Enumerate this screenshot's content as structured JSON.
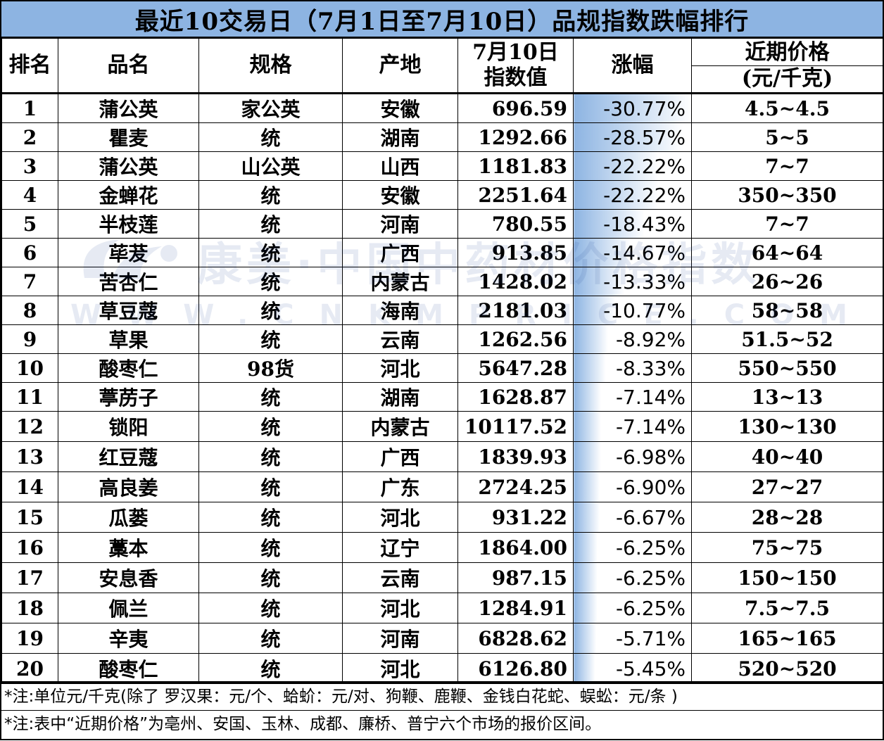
{
  "title": "最近10交易日（7月1日至7月10日）品规指数跌幅排行",
  "headers": {
    "rank": "排名",
    "name": "品名",
    "spec": "规格",
    "origin": "产地",
    "index_line1": "7月10日",
    "index_line2": "指数值",
    "change": "涨幅",
    "price_line1": "近期价格",
    "price_line2": "(元/千克)"
  },
  "rows": [
    {
      "rank": "1",
      "name": "蒲公英",
      "spec": "家公英",
      "origin": "安徽",
      "index": "696.59",
      "change": "-30.77%",
      "price": "4.5~4.5",
      "change_pct": 30.77
    },
    {
      "rank": "2",
      "name": "瞿麦",
      "spec": "统",
      "origin": "湖南",
      "index": "1292.66",
      "change": "-28.57%",
      "price": "5~5",
      "change_pct": 28.57
    },
    {
      "rank": "3",
      "name": "蒲公英",
      "spec": "山公英",
      "origin": "山西",
      "index": "1181.83",
      "change": "-22.22%",
      "price": "7~7",
      "change_pct": 22.22
    },
    {
      "rank": "4",
      "name": "金蝉花",
      "spec": "统",
      "origin": "安徽",
      "index": "2251.64",
      "change": "-22.22%",
      "price": "350~350",
      "change_pct": 22.22
    },
    {
      "rank": "5",
      "name": "半枝莲",
      "spec": "统",
      "origin": "河南",
      "index": "780.55",
      "change": "-18.43%",
      "price": "7~7",
      "change_pct": 18.43
    },
    {
      "rank": "6",
      "name": "荜茇",
      "spec": "统",
      "origin": "广西",
      "index": "913.85",
      "change": "-14.67%",
      "price": "64~64",
      "change_pct": 14.67
    },
    {
      "rank": "7",
      "name": "苦杏仁",
      "spec": "统",
      "origin": "内蒙古",
      "index": "1428.02",
      "change": "-13.33%",
      "price": "26~26",
      "change_pct": 13.33
    },
    {
      "rank": "8",
      "name": "草豆蔻",
      "spec": "统",
      "origin": "海南",
      "index": "2181.03",
      "change": "-10.77%",
      "price": "58~58",
      "change_pct": 10.77
    },
    {
      "rank": "9",
      "name": "草果",
      "spec": "统",
      "origin": "云南",
      "index": "1262.56",
      "change": "-8.92%",
      "price": "51.5~52",
      "change_pct": 8.92
    },
    {
      "rank": "10",
      "name": "酸枣仁",
      "spec": "98货",
      "origin": "河北",
      "index": "5647.28",
      "change": "-8.33%",
      "price": "550~550",
      "change_pct": 8.33
    },
    {
      "rank": "11",
      "name": "葶苈子",
      "spec": "统",
      "origin": "湖南",
      "index": "1628.87",
      "change": "-7.14%",
      "price": "13~13",
      "change_pct": 7.14
    },
    {
      "rank": "12",
      "name": "锁阳",
      "spec": "统",
      "origin": "内蒙古",
      "index": "10117.52",
      "change": "-7.14%",
      "price": "130~130",
      "change_pct": 7.14
    },
    {
      "rank": "13",
      "name": "红豆蔻",
      "spec": "统",
      "origin": "广西",
      "index": "1839.93",
      "change": "-6.98%",
      "price": "40~40",
      "change_pct": 6.98
    },
    {
      "rank": "14",
      "name": "高良姜",
      "spec": "统",
      "origin": "广东",
      "index": "2724.25",
      "change": "-6.90%",
      "price": "27~27",
      "change_pct": 6.9
    },
    {
      "rank": "15",
      "name": "瓜蒌",
      "spec": "统",
      "origin": "河北",
      "index": "931.22",
      "change": "-6.67%",
      "price": "28~28",
      "change_pct": 6.67
    },
    {
      "rank": "16",
      "name": "藁本",
      "spec": "统",
      "origin": "辽宁",
      "index": "1864.00",
      "change": "-6.25%",
      "price": "75~75",
      "change_pct": 6.25
    },
    {
      "rank": "17",
      "name": "安息香",
      "spec": "统",
      "origin": "云南",
      "index": "987.15",
      "change": "-6.25%",
      "price": "150~150",
      "change_pct": 6.25
    },
    {
      "rank": "18",
      "name": "佩兰",
      "spec": "统",
      "origin": "河北",
      "index": "1284.91",
      "change": "-6.25%",
      "price": "7.5~7.5",
      "change_pct": 6.25
    },
    {
      "rank": "19",
      "name": "辛夷",
      "spec": "统",
      "origin": "河南",
      "index": "6828.62",
      "change": "-5.71%",
      "price": "165~165",
      "change_pct": 5.71
    },
    {
      "rank": "20",
      "name": "酸枣仁",
      "spec": "统",
      "origin": "河北",
      "index": "6126.80",
      "change": "-5.45%",
      "price": "520~520",
      "change_pct": 5.45
    }
  ],
  "notes": [
    "*注:单位元/千克(除了 罗汉果：元/个、蛤蚧：元/对、狗鞭、鹿鞭、金钱白花蛇、蜈蚣：元/条 )",
    "*注:表中“近期价格”为亳州、安国、玉林、成都、廉桥、普宁六个市场的报价区间。"
  ],
  "watermark": {
    "line1": "康美·中国中药材价格指数",
    "line2": "WWW.CNKMPRICE.COM"
  },
  "colors": {
    "title_bg": "#8db4e2",
    "gradient_dark": "#8db4e2",
    "gradient_light": "#ffffff"
  }
}
